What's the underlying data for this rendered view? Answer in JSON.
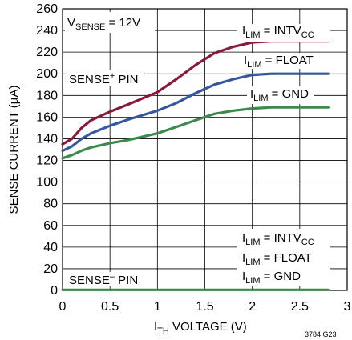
{
  "chart_data": {
    "type": "line",
    "x_label": {
      "main": "I",
      "sub": "TH",
      "rest": " VOLTAGE (V)"
    },
    "y_label": "SENSE CURRENT (µA)",
    "xlim": [
      0,
      3
    ],
    "ylim": [
      0,
      260
    ],
    "x_ticks": [
      0,
      0.5,
      1,
      1.5,
      2,
      2.5,
      3
    ],
    "x_tick_labels": [
      "0",
      "0.5",
      "1",
      "1.5",
      "2",
      "2.5",
      "3"
    ],
    "y_ticks": [
      0,
      20,
      40,
      60,
      80,
      100,
      120,
      140,
      160,
      180,
      200,
      220,
      240,
      260
    ],
    "grid": true,
    "condition": {
      "main": "V",
      "sub": "SENSE",
      "rest": " = 12V"
    },
    "sense_plus_label": {
      "main": "SENSE",
      "sup": "+",
      "rest": " PIN"
    },
    "sense_minus_label": {
      "main": "SENSE",
      "sup": "–",
      "rest": " PIN"
    },
    "series": [
      {
        "name": "I_LIM = INTV_CC (SENSE+)",
        "color": "#8b1a3a",
        "label": {
          "main": "I",
          "sub": "LIM",
          "rest": " = INTV",
          "sub2": "CC"
        },
        "x": [
          0,
          0.1,
          0.2,
          0.3,
          0.5,
          0.7,
          1.0,
          1.2,
          1.4,
          1.6,
          1.8,
          2.0,
          2.2,
          2.5,
          2.8
        ],
        "y": [
          135,
          140,
          150,
          157,
          165,
          172,
          183,
          195,
          208,
          219,
          225,
          229,
          230,
          230,
          230
        ]
      },
      {
        "name": "I_LIM = FLOAT (SENSE+)",
        "color": "#36569e",
        "label": {
          "main": "I",
          "sub": "LIM",
          "rest": " = FLOAT"
        },
        "x": [
          0,
          0.1,
          0.2,
          0.3,
          0.5,
          0.7,
          1.0,
          1.2,
          1.4,
          1.6,
          1.8,
          2.0,
          2.2,
          2.5,
          2.8
        ],
        "y": [
          129,
          133,
          140,
          145,
          152,
          158,
          166,
          173,
          182,
          190,
          195,
          199,
          200,
          200,
          200
        ]
      },
      {
        "name": "I_LIM = GND (SENSE+)",
        "color": "#3c8a4c",
        "label": {
          "main": "I",
          "sub": "LIM",
          "rest": " = GND"
        },
        "x": [
          0,
          0.1,
          0.2,
          0.3,
          0.5,
          0.7,
          1.0,
          1.2,
          1.4,
          1.6,
          1.8,
          2.0,
          2.2,
          2.5,
          2.8
        ],
        "y": [
          122,
          125,
          129,
          132,
          136,
          139,
          145,
          151,
          157,
          163,
          166,
          168,
          169,
          169,
          169
        ]
      },
      {
        "name": "SENSE- PIN (all I_LIM)",
        "color": "#3c8a4c",
        "x": [
          0,
          2.8
        ],
        "y": [
          0.5,
          0.5
        ]
      }
    ],
    "minus_labels": [
      {
        "main": "I",
        "sub": "LIM",
        "rest": " = INTV",
        "sub2": "CC"
      },
      {
        "main": "I",
        "sub": "LIM",
        "rest": " = FLOAT"
      },
      {
        "main": "I",
        "sub": "LIM",
        "rest": " = GND"
      }
    ],
    "figure_note": "3784 G23"
  }
}
